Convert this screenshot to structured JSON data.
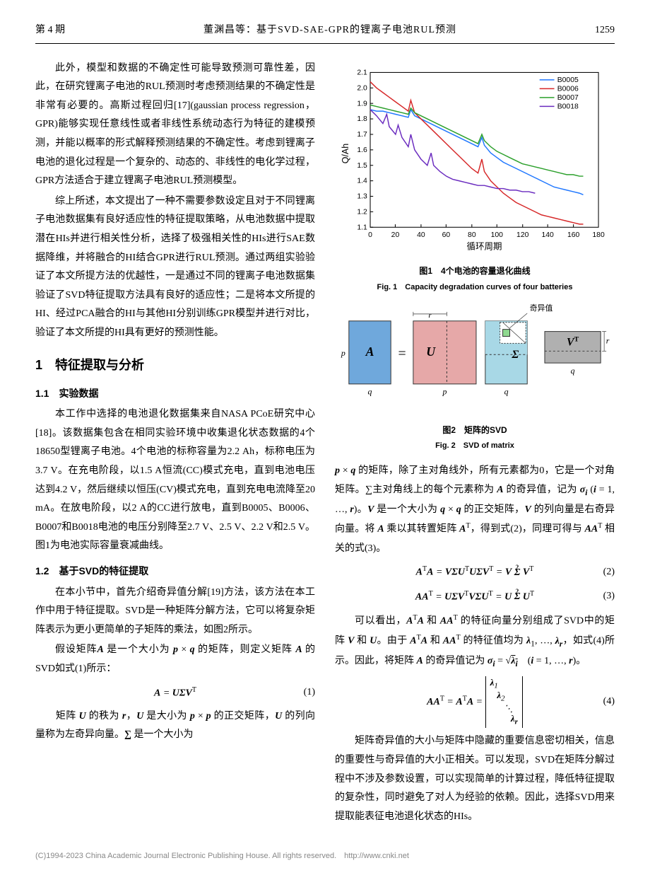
{
  "header": {
    "issue": "第 4 期",
    "title": "董渊昌等：基于SVD-SAE-GPR的锂离子电池RUL预测",
    "page": "1259"
  },
  "left_col": {
    "p1": "此外，模型和数据的不确定性可能导致预测可靠性差，因此，在研究锂离子电池的RUL预测时考虑预测结果的不确定性是非常有必要的。高斯过程回归[17](gaussian process regression，GPR)能够实现任意线性或者非线性系统动态行为特征的建模预测，并能以概率的形式解释预测结果的不确定性。考虑到锂离子电池的退化过程是一个复杂的、动态的、非线性的电化学过程，GPR方法适合于建立锂离子电池RUL预测模型。",
    "p2": "综上所述，本文提出了一种不需要参数设定且对于不同锂离子电池数据集有良好适应性的特征提取策略，从电池数据中提取潜在HIs并进行相关性分析，选择了极强相关性的HIs进行SAE数据降维，并将融合的HI结合GPR进行RUL预测。通过两组实验验证了本文所提方法的优越性，一是通过不同的锂离子电池数据集验证了SVD特征提取方法具有良好的适应性；二是将本文所提的HI、经过PCA融合的HI与其他HI分别训练GPR模型并进行对比，验证了本文所提的HI具有更好的预测性能。",
    "sec1_title": "1　特征提取与分析",
    "sec11_title": "1.1　实验数据",
    "p3": "本工作中选择的电池退化数据集来自NASA PCoE研究中心[18]。该数据集包含在相同实验环境中收集退化状态数据的4个18650型锂离子电池。4个电池的标称容量为2.2 Ah，标称电压为3.7 V。在充电阶段，以1.5 A恒流(CC)模式充电，直到电池电压达到4.2 V，然后继续以恒压(CV)模式充电，直到充电电流降至20 mA。在放电阶段，以2 A的CC进行放电，直到B0005、B0006、B0007和B0018电池的电压分别降至2.7 V、2.5 V、2.2 V和2.5 V。图1为电池实际容量衰减曲线。",
    "sec12_title": "1.2　基于SVD的特征提取",
    "p4": "在本小节中，首先介绍奇异值分解[19]方法，该方法在本工作中用于特征提取。SVD是一种矩阵分解方法，它可以将复杂矩阵表示为更小更简单的子矩阵的乘法，如图2所示。",
    "p5_pre": "假设矩阵",
    "p5_post": "的SVD如式(1)所示：",
    "eq1": "A = UΣV",
    "eq1_sup": "T",
    "eq1_num": "(1)",
    "p6_pre": "矩阵",
    "p6_post": "是一个大小为"
  },
  "right_col": {
    "fig1_cn": "图1　4个电池的容量退化曲线",
    "fig1_en": "Fig. 1　Capacity degradation curves of four batteries",
    "fig2_cn": "图2　矩阵的SVD",
    "fig2_en": "Fig. 2　SVD of matrix",
    "p1_text": "的矩阵，除了主对角线外，所有元素都为0，它是一个对角矩阵。∑主对角线上的每个元素称为",
    "p1_text2": "的列向量是右奇异向量。将",
    "p1_text3": "，得到式(2)，同理可得与",
    "p1_text4": "相关的式(3)。",
    "eq2_num": "(2)",
    "eq3_num": "(3)",
    "p2_text": "可以看出，",
    "p2_text2": "的特征向量分别组成了SVD中的矩阵",
    "p2_text3": "的特征值均为",
    "p2_text4": "，如式(4)所示。因此，将矩阵",
    "p2_text5": "的奇异值记为",
    "eq4_num": "(4)",
    "p3": "矩阵奇异值的大小与矩阵中隐藏的重要信息密切相关，信息的重要性与奇异值的大小正相关。可以发现，SVD在矩阵分解过程中不涉及参数设置，可以实现简单的计算过程，降低特征提取的复杂性，同时避免了对人为经验的依赖。因此，选择SVD用来提取能表征电池退化状态的HIs。"
  },
  "chart": {
    "type": "line",
    "xlabel": "循环周期",
    "ylabel": "Q/Ah",
    "xlim": [
      0,
      180
    ],
    "ylim": [
      1.1,
      2.1
    ],
    "xticks": [
      0,
      20,
      40,
      60,
      80,
      100,
      120,
      140,
      160,
      180
    ],
    "yticks": [
      1.1,
      1.2,
      1.3,
      1.4,
      1.5,
      1.6,
      1.7,
      1.8,
      1.9,
      2.0,
      2.1
    ],
    "legend_pos": "top-right",
    "background_color": "#ffffff",
    "axis_color": "#000000",
    "series": [
      {
        "name": "B0005",
        "color": "#1f77ff",
        "points": [
          [
            0,
            1.86
          ],
          [
            5,
            1.85
          ],
          [
            10,
            1.85
          ],
          [
            15,
            1.84
          ],
          [
            20,
            1.83
          ],
          [
            25,
            1.82
          ],
          [
            30,
            1.81
          ],
          [
            32,
            1.86
          ],
          [
            35,
            1.82
          ],
          [
            40,
            1.8
          ],
          [
            45,
            1.78
          ],
          [
            50,
            1.76
          ],
          [
            55,
            1.74
          ],
          [
            60,
            1.72
          ],
          [
            65,
            1.7
          ],
          [
            70,
            1.68
          ],
          [
            75,
            1.66
          ],
          [
            80,
            1.64
          ],
          [
            85,
            1.62
          ],
          [
            88,
            1.68
          ],
          [
            90,
            1.63
          ],
          [
            95,
            1.58
          ],
          [
            100,
            1.55
          ],
          [
            105,
            1.52
          ],
          [
            110,
            1.5
          ],
          [
            115,
            1.48
          ],
          [
            120,
            1.46
          ],
          [
            125,
            1.44
          ],
          [
            130,
            1.42
          ],
          [
            135,
            1.4
          ],
          [
            140,
            1.38
          ],
          [
            145,
            1.36
          ],
          [
            150,
            1.35
          ],
          [
            155,
            1.34
          ],
          [
            160,
            1.33
          ],
          [
            165,
            1.32
          ],
          [
            168,
            1.31
          ]
        ]
      },
      {
        "name": "B0006",
        "color": "#d62728",
        "points": [
          [
            0,
            2.04
          ],
          [
            5,
            2.0
          ],
          [
            10,
            1.97
          ],
          [
            15,
            1.94
          ],
          [
            20,
            1.91
          ],
          [
            25,
            1.88
          ],
          [
            30,
            1.85
          ],
          [
            32,
            1.92
          ],
          [
            35,
            1.84
          ],
          [
            40,
            1.8
          ],
          [
            45,
            1.76
          ],
          [
            50,
            1.72
          ],
          [
            55,
            1.68
          ],
          [
            60,
            1.64
          ],
          [
            65,
            1.6
          ],
          [
            70,
            1.56
          ],
          [
            75,
            1.52
          ],
          [
            80,
            1.48
          ],
          [
            85,
            1.45
          ],
          [
            88,
            1.54
          ],
          [
            90,
            1.46
          ],
          [
            95,
            1.4
          ],
          [
            100,
            1.36
          ],
          [
            105,
            1.32
          ],
          [
            110,
            1.29
          ],
          [
            115,
            1.26
          ],
          [
            120,
            1.24
          ],
          [
            125,
            1.22
          ],
          [
            130,
            1.2
          ],
          [
            135,
            1.18
          ],
          [
            140,
            1.17
          ],
          [
            145,
            1.16
          ],
          [
            150,
            1.15
          ],
          [
            155,
            1.14
          ],
          [
            160,
            1.13
          ],
          [
            165,
            1.12
          ],
          [
            168,
            1.12
          ]
        ]
      },
      {
        "name": "B0007",
        "color": "#2ca02c",
        "points": [
          [
            0,
            1.89
          ],
          [
            5,
            1.88
          ],
          [
            10,
            1.87
          ],
          [
            15,
            1.86
          ],
          [
            20,
            1.85
          ],
          [
            25,
            1.84
          ],
          [
            30,
            1.83
          ],
          [
            32,
            1.87
          ],
          [
            35,
            1.84
          ],
          [
            40,
            1.82
          ],
          [
            45,
            1.8
          ],
          [
            50,
            1.78
          ],
          [
            55,
            1.76
          ],
          [
            60,
            1.74
          ],
          [
            65,
            1.72
          ],
          [
            70,
            1.7
          ],
          [
            75,
            1.68
          ],
          [
            80,
            1.66
          ],
          [
            85,
            1.64
          ],
          [
            88,
            1.7
          ],
          [
            90,
            1.66
          ],
          [
            95,
            1.62
          ],
          [
            100,
            1.59
          ],
          [
            105,
            1.57
          ],
          [
            110,
            1.55
          ],
          [
            115,
            1.53
          ],
          [
            120,
            1.51
          ],
          [
            125,
            1.5
          ],
          [
            130,
            1.49
          ],
          [
            135,
            1.48
          ],
          [
            140,
            1.47
          ],
          [
            145,
            1.46
          ],
          [
            150,
            1.45
          ],
          [
            155,
            1.44
          ],
          [
            160,
            1.44
          ],
          [
            165,
            1.43
          ],
          [
            168,
            1.43
          ]
        ]
      },
      {
        "name": "B0018",
        "color": "#6a2bbf",
        "points": [
          [
            0,
            1.86
          ],
          [
            5,
            1.82
          ],
          [
            10,
            1.77
          ],
          [
            13,
            1.83
          ],
          [
            15,
            1.75
          ],
          [
            20,
            1.7
          ],
          [
            22,
            1.76
          ],
          [
            25,
            1.68
          ],
          [
            30,
            1.62
          ],
          [
            32,
            1.7
          ],
          [
            35,
            1.6
          ],
          [
            40,
            1.54
          ],
          [
            45,
            1.5
          ],
          [
            48,
            1.58
          ],
          [
            50,
            1.5
          ],
          [
            55,
            1.46
          ],
          [
            60,
            1.43
          ],
          [
            65,
            1.41
          ],
          [
            70,
            1.4
          ],
          [
            75,
            1.39
          ],
          [
            80,
            1.38
          ],
          [
            85,
            1.37
          ],
          [
            90,
            1.37
          ],
          [
            95,
            1.36
          ],
          [
            100,
            1.35
          ],
          [
            105,
            1.35
          ],
          [
            110,
            1.34
          ],
          [
            115,
            1.34
          ],
          [
            120,
            1.33
          ],
          [
            125,
            1.33
          ],
          [
            130,
            1.32
          ]
        ]
      }
    ]
  },
  "svd_diagram": {
    "label_singular": "奇异值",
    "colors": {
      "A": "#6fa8dc",
      "U": "#e6a8a8",
      "Sigma_top": "#8fd98f",
      "Sigma_bottom": "#a8d8e6",
      "VT": "#b0b0b0",
      "border": "#333333",
      "dash": "#333333"
    },
    "labels": {
      "A": "A",
      "U": "U",
      "Sigma": "Σ",
      "VT": "Vᵀ",
      "eq": "=",
      "p": "p",
      "q": "q",
      "r": "r"
    }
  },
  "footer": "(C)1994-2023 China Academic Journal Electronic Publishing House. All rights reserved.　http://www.cnki.net"
}
